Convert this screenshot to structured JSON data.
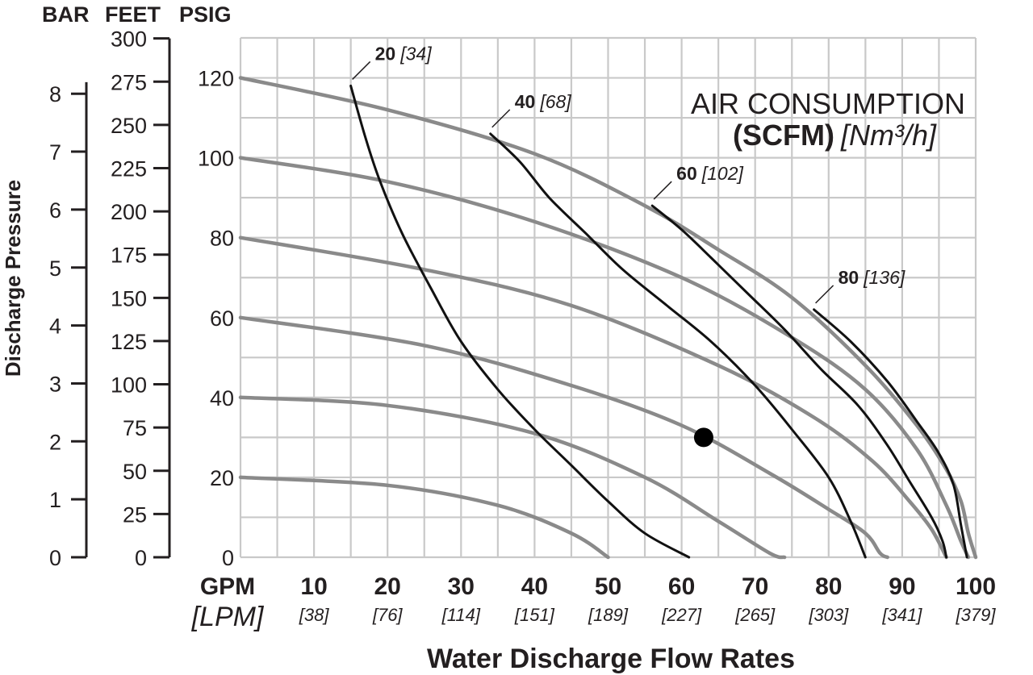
{
  "chart_data": {
    "type": "line",
    "xlabel": "Water Discharge Flow Rates",
    "ylabel": "Discharge Pressure",
    "xlim": [
      0,
      100
    ],
    "ylim": [
      0,
      130
    ],
    "grid": true,
    "x_header": {
      "gpm": "GPM",
      "lpm": "[LPM]"
    },
    "x_ticks": [
      {
        "gpm": "10",
        "lpm": "[38]"
      },
      {
        "gpm": "20",
        "lpm": "[76]"
      },
      {
        "gpm": "30",
        "lpm": "[114]"
      },
      {
        "gpm": "40",
        "lpm": "[151]"
      },
      {
        "gpm": "50",
        "lpm": "[189]"
      },
      {
        "gpm": "60",
        "lpm": "[227]"
      },
      {
        "gpm": "70",
        "lpm": "[265]"
      },
      {
        "gpm": "80",
        "lpm": "[303]"
      },
      {
        "gpm": "90",
        "lpm": "[341]"
      },
      {
        "gpm": "100",
        "lpm": "[379]"
      }
    ],
    "left_axes": {
      "bar": {
        "label": "BAR",
        "ticks": [
          "0",
          "1",
          "2",
          "3",
          "4",
          "5",
          "6",
          "7",
          "8"
        ]
      },
      "feet": {
        "label": "FEET",
        "ticks": [
          "0",
          "25",
          "50",
          "75",
          "100",
          "125",
          "150",
          "175",
          "200",
          "225",
          "250",
          "275",
          "300"
        ]
      },
      "psig": {
        "label": "PSIG",
        "ticks": [
          "0",
          "20",
          "40",
          "60",
          "80",
          "100",
          "120"
        ]
      }
    },
    "air_consumption": {
      "line1": "AIR CONSUMPTION",
      "bold": "(SCFM)",
      "italic": "[Nm³/h]"
    },
    "series_pressure": [
      {
        "name": "20 psig",
        "points": [
          [
            0,
            20
          ],
          [
            20,
            18
          ],
          [
            35,
            13
          ],
          [
            45,
            6
          ],
          [
            50,
            0
          ]
        ]
      },
      {
        "name": "40 psig",
        "points": [
          [
            0,
            40
          ],
          [
            20,
            38
          ],
          [
            40,
            31
          ],
          [
            55,
            20
          ],
          [
            65,
            9
          ],
          [
            72,
            1
          ],
          [
            74,
            0
          ]
        ]
      },
      {
        "name": "60 psig",
        "points": [
          [
            0,
            60
          ],
          [
            25,
            53
          ],
          [
            45,
            43
          ],
          [
            60,
            33
          ],
          [
            72,
            21
          ],
          [
            80,
            12
          ],
          [
            85,
            6
          ],
          [
            87,
            1
          ],
          [
            88,
            0
          ]
        ]
      },
      {
        "name": "80 psig",
        "points": [
          [
            0,
            80
          ],
          [
            25,
            72
          ],
          [
            45,
            63
          ],
          [
            65,
            48
          ],
          [
            78,
            35
          ],
          [
            86,
            24
          ],
          [
            91,
            14
          ],
          [
            94,
            7
          ],
          [
            96,
            0
          ]
        ]
      },
      {
        "name": "100 psig",
        "points": [
          [
            0,
            100
          ],
          [
            20,
            94
          ],
          [
            40,
            84
          ],
          [
            60,
            70
          ],
          [
            75,
            55
          ],
          [
            85,
            42
          ],
          [
            92,
            27
          ],
          [
            96,
            13
          ],
          [
            98,
            4
          ],
          [
            99,
            0
          ]
        ]
      },
      {
        "name": "120 psig",
        "points": [
          [
            0,
            120
          ],
          [
            20,
            112
          ],
          [
            40,
            101
          ],
          [
            55,
            88
          ],
          [
            65,
            77
          ],
          [
            75,
            65
          ],
          [
            85,
            48
          ],
          [
            92,
            33
          ],
          [
            96,
            22
          ],
          [
            98,
            14
          ],
          [
            99,
            6
          ],
          [
            100,
            0
          ]
        ]
      }
    ],
    "series_air": [
      {
        "name": "20",
        "label_bold": "20",
        "label_italic": "[34]",
        "points": [
          [
            15,
            118
          ],
          [
            17,
            105
          ],
          [
            19,
            94
          ],
          [
            22,
            81
          ],
          [
            26,
            67
          ],
          [
            30,
            54
          ],
          [
            35,
            42
          ],
          [
            40,
            32
          ],
          [
            45,
            23
          ],
          [
            50,
            14
          ],
          [
            55,
            6
          ],
          [
            61,
            0
          ]
        ]
      },
      {
        "name": "40",
        "label_bold": "40",
        "label_italic": "[68]",
        "points": [
          [
            34,
            106
          ],
          [
            38,
            99
          ],
          [
            42,
            90
          ],
          [
            47,
            81
          ],
          [
            52,
            72
          ],
          [
            58,
            63
          ],
          [
            64,
            54
          ],
          [
            70,
            43
          ],
          [
            75,
            32
          ],
          [
            80,
            20
          ],
          [
            83,
            9
          ],
          [
            85,
            0
          ]
        ]
      },
      {
        "name": "60",
        "label_bold": "60",
        "label_italic": "[102]",
        "points": [
          [
            56,
            88
          ],
          [
            60,
            82
          ],
          [
            64,
            75
          ],
          [
            69,
            66
          ],
          [
            74,
            57
          ],
          [
            79,
            47
          ],
          [
            84,
            38
          ],
          [
            88,
            28
          ],
          [
            91,
            19
          ],
          [
            94,
            10
          ],
          [
            95.5,
            4
          ],
          [
            96,
            0
          ]
        ]
      },
      {
        "name": "80",
        "label_bold": "80",
        "label_italic": "[136]",
        "points": [
          [
            78,
            62
          ],
          [
            83,
            54
          ],
          [
            88,
            44
          ],
          [
            92,
            34
          ],
          [
            95,
            26
          ],
          [
            97,
            18
          ],
          [
            98,
            8
          ],
          [
            98.8,
            0
          ]
        ]
      }
    ],
    "operating_point": {
      "x": 63,
      "y": 30
    }
  }
}
